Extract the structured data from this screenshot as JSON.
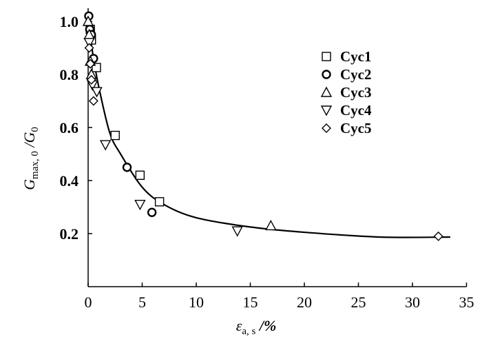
{
  "chart_data": {
    "type": "scatter",
    "title": "",
    "xlabel": {
      "symbol": "ε",
      "sub": "a, s",
      "unit": " /%"
    },
    "ylabel": {
      "g1": "G",
      "sub1": "max, 0",
      "slash": " /",
      "g2": "G",
      "sub2": "0"
    },
    "xlim": [
      0,
      35
    ],
    "ylim": [
      0,
      1.05
    ],
    "xticks": [
      0,
      5,
      10,
      15,
      20,
      25,
      30,
      35
    ],
    "yticks": [
      0.2,
      0.4,
      0.6,
      0.8,
      1.0
    ],
    "ytick_labels": [
      "0.2",
      "0.4",
      "0.6",
      "0.8",
      "1.0"
    ],
    "grid": false,
    "legend_position": "top-right",
    "series": [
      {
        "name": "Cyc1",
        "marker": "square",
        "points": [
          [
            0.2,
            0.97
          ],
          [
            0.3,
            0.93
          ],
          [
            0.76,
            0.826
          ],
          [
            2.5,
            0.57
          ],
          [
            4.8,
            0.42
          ],
          [
            6.6,
            0.32
          ]
        ]
      },
      {
        "name": "Cyc2",
        "marker": "circle",
        "points": [
          [
            0.06,
            1.02
          ],
          [
            0.15,
            0.97
          ],
          [
            0.3,
            0.95
          ],
          [
            0.5,
            0.86
          ],
          [
            3.6,
            0.45
          ],
          [
            5.9,
            0.28
          ]
        ]
      },
      {
        "name": "Cyc3",
        "marker": "triangle-up",
        "points": [
          [
            0.0,
            1.0
          ],
          [
            0.1,
            0.95
          ],
          [
            0.2,
            0.85
          ],
          [
            0.3,
            0.8
          ],
          [
            16.9,
            0.23
          ]
        ]
      },
      {
        "name": "Cyc4",
        "marker": "triangle-down",
        "points": [
          [
            0.1,
            0.92
          ],
          [
            0.4,
            0.76
          ],
          [
            0.8,
            0.735
          ],
          [
            1.6,
            0.535
          ],
          [
            4.8,
            0.31
          ],
          [
            13.8,
            0.21
          ]
        ]
      },
      {
        "name": "Cyc5",
        "marker": "diamond",
        "points": [
          [
            0.1,
            0.9
          ],
          [
            0.2,
            0.84
          ],
          [
            0.3,
            0.78
          ],
          [
            0.5,
            0.7
          ],
          [
            32.4,
            0.19
          ]
        ]
      }
    ],
    "fit_curve": [
      [
        0,
        1.0
      ],
      [
        0.5,
        0.86
      ],
      [
        1,
        0.75
      ],
      [
        2,
        0.58
      ],
      [
        3,
        0.5
      ],
      [
        5,
        0.375
      ],
      [
        7,
        0.31
      ],
      [
        10,
        0.26
      ],
      [
        15,
        0.225
      ],
      [
        20,
        0.205
      ],
      [
        27,
        0.187
      ],
      [
        33.5,
        0.187
      ]
    ]
  }
}
